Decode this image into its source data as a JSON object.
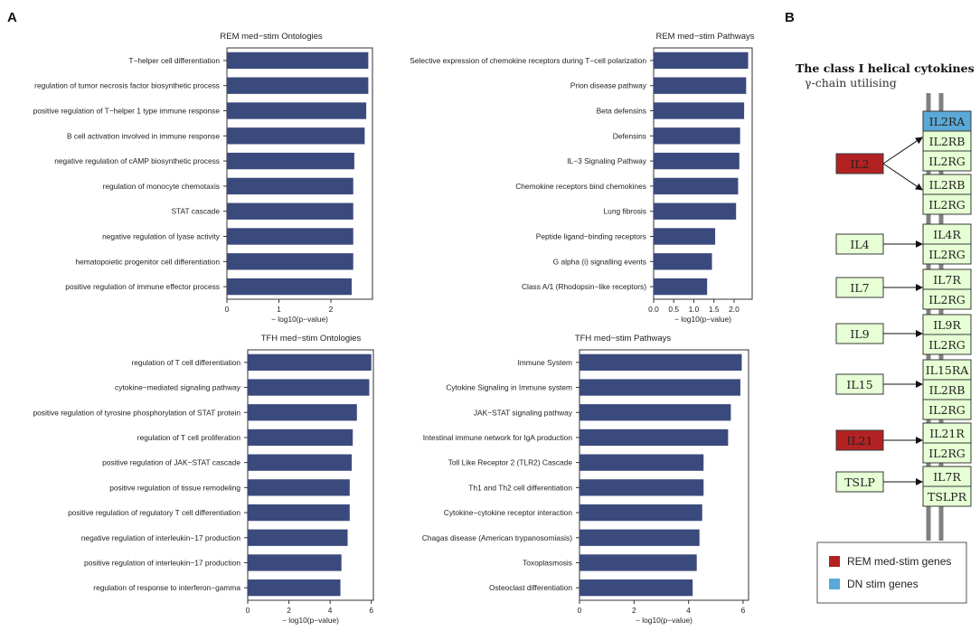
{
  "panel_labels": [
    "A",
    "B"
  ],
  "colors": {
    "bar": "#3B4A7D",
    "rem_gene": "#B22222",
    "dn_gene": "#5BA9D6",
    "receptor": "#E6FFD4",
    "ligand": "#E6FFD4",
    "membrane": "#808080"
  },
  "chart_data": [
    {
      "type": "bar",
      "orientation": "horizontal",
      "title": "REM med−stim Ontologies",
      "xlabel": "− log10(p−value)",
      "ylabel": "",
      "xlim": [
        0,
        2.8
      ],
      "xticks": [
        0,
        1,
        2
      ],
      "categories": [
        "T−helper cell differentiation",
        "regulation of tumor necrosis factor biosynthetic process",
        "positive regulation of T−helper 1 type immune response",
        "B cell activation involved in immune response",
        "negative regulation of cAMP biosynthetic process",
        "regulation of monocyte chemotaxis",
        "STAT cascade",
        "negative regulation of lyase activity",
        "hematopoietic progenitor cell differentiation",
        "positive regulation of immune effector process"
      ],
      "values": [
        2.72,
        2.72,
        2.68,
        2.65,
        2.45,
        2.43,
        2.43,
        2.43,
        2.43,
        2.4
      ]
    },
    {
      "type": "bar",
      "orientation": "horizontal",
      "title": "REM med−stim Pathways",
      "xlabel": "− log10(p−value)",
      "ylabel": "",
      "xlim": [
        0,
        2.45
      ],
      "xticks": [
        0.0,
        0.5,
        1.0,
        1.5,
        2.0
      ],
      "xtick_labels": [
        "0.0",
        "0.5",
        "1.0",
        "1.5",
        "2.0"
      ],
      "categories": [
        "Selective expression of chemokine receptors during T−cell polarization",
        "Prion disease pathway",
        "Beta defensins",
        "Defensins",
        "IL−3 Signaling Pathway",
        "Chemokine receptors bind chemokines",
        "Lung fibrosis",
        "Peptide ligand−binding receptors",
        "G alpha (i) signalling events",
        "Class A/1 (Rhodopsin−like receptors)"
      ],
      "values": [
        2.35,
        2.3,
        2.25,
        2.15,
        2.13,
        2.1,
        2.05,
        1.53,
        1.45,
        1.33
      ]
    },
    {
      "type": "bar",
      "orientation": "horizontal",
      "title": "TFH med−stim Ontologies",
      "xlabel": "− log10(p−value)",
      "ylabel": "",
      "xlim": [
        0,
        6.1
      ],
      "xticks": [
        0,
        2,
        4,
        6
      ],
      "categories": [
        "regulation of T cell differentiation",
        "cytokine−mediated signaling pathway",
        "positive regulation of tyrosine phosphorylation of STAT protein",
        "regulation of T cell proliferation",
        "positive regulation of JAK−STAT cascade",
        "positive regulation of tissue remodeling",
        "positive regulation of regulatory T cell differentiation",
        "negative regulation of interleukin−17 production",
        "positive regulation of interleukin−17 production",
        "regulation of response to interferon−gamma"
      ],
      "values": [
        6.0,
        5.9,
        5.3,
        5.1,
        5.05,
        4.95,
        4.95,
        4.85,
        4.55,
        4.5
      ]
    },
    {
      "type": "bar",
      "orientation": "horizontal",
      "title": "TFH med−stim Pathways",
      "xlabel": "− log10(p−value)",
      "ylabel": "",
      "xlim": [
        0,
        6.2
      ],
      "xticks": [
        0,
        2,
        4,
        6
      ],
      "categories": [
        "Immune System",
        "Cytokine Signaling in Immune system",
        "JAK−STAT signaling pathway",
        "Intestinal immune network for IgA production",
        "Toll Like Receptor 2 (TLR2) Cascade",
        "Th1 and Th2 cell differentiation",
        "Cytokine−cytokine receptor interaction",
        "Chagas disease (American trypanosomiasis)",
        "Toxoplasmosis",
        "Osteoclast differentiation"
      ],
      "values": [
        5.95,
        5.9,
        5.55,
        5.45,
        4.55,
        4.55,
        4.5,
        4.4,
        4.3,
        4.15
      ]
    }
  ],
  "pathway_diagram": {
    "title": "The class I helical cytokines",
    "subtitle": "γ-chain utilising",
    "ligands": [
      {
        "name": "IL2",
        "status": "rem"
      },
      {
        "name": "IL4",
        "status": "none"
      },
      {
        "name": "IL7",
        "status": "none"
      },
      {
        "name": "IL9",
        "status": "none"
      },
      {
        "name": "IL15",
        "status": "none"
      },
      {
        "name": "IL21",
        "status": "rem"
      },
      {
        "name": "TSLP",
        "status": "none"
      }
    ],
    "receptors": [
      {
        "name": "IL2RA",
        "status": "dn"
      },
      {
        "name": "IL2RB",
        "status": "none"
      },
      {
        "name": "IL2RG",
        "status": "none"
      },
      {
        "name": "IL2RB",
        "status": "none"
      },
      {
        "name": "IL2RG",
        "status": "none"
      },
      {
        "name": "IL4R",
        "status": "none"
      },
      {
        "name": "IL2RG",
        "status": "none"
      },
      {
        "name": "IL7R",
        "status": "none"
      },
      {
        "name": "IL2RG",
        "status": "none"
      },
      {
        "name": "IL9R",
        "status": "none"
      },
      {
        "name": "IL2RG",
        "status": "none"
      },
      {
        "name": "IL15RA",
        "status": "none"
      },
      {
        "name": "IL2RB",
        "status": "none"
      },
      {
        "name": "IL2RG",
        "status": "none"
      },
      {
        "name": "IL21R",
        "status": "none"
      },
      {
        "name": "IL2RG",
        "status": "none"
      },
      {
        "name": "IL7R",
        "status": "none"
      },
      {
        "name": "TSLPR",
        "status": "none"
      }
    ],
    "legend": [
      {
        "label": "REM med-stim genes",
        "status": "rem"
      },
      {
        "label": "DN stim genes",
        "status": "dn"
      }
    ]
  }
}
